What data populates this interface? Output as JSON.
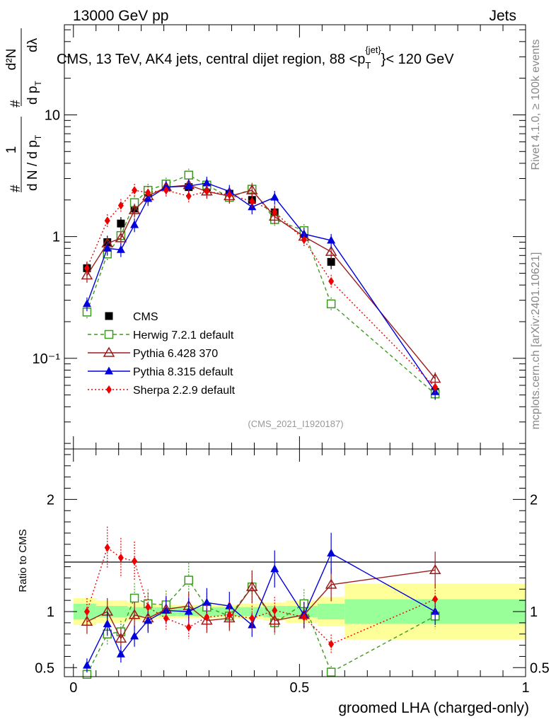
{
  "header": {
    "left": "13000 GeV pp",
    "right": "Jets"
  },
  "side_labels": {
    "rivet": "Rivet 4.1.0, ≥ 100k events",
    "mcplots": "mcplots.cern.ch [arXiv:2401.10621]"
  },
  "colors": {
    "cms": "#000000",
    "herwig": "#3c9a1e",
    "pythia6": "#9b1c1c",
    "pythia8": "#0000dd",
    "sherpa": "#ee0000",
    "band_inner": "#99ff99",
    "band_outer": "#ffff99"
  },
  "chart_data": [
    {
      "type": "scatter",
      "title": "CMS, 13 TeV, AK4 jets, central dijet region, 88 <p_T^{jet}< 120 GeV",
      "title_parts": {
        "prefix": "CMS, 13 TeV, AK4 jets, central dijet region, 88 <p",
        "sub": "T",
        "sup": "{jet}",
        "suffix": "}< 120 GeV"
      },
      "ylabel": "1/dN/dp_T d²N/dp_T dλ",
      "ylabel_parts": {
        "hash": "#",
        "one": "1",
        "denom": "d N / d p",
        "sub": "T",
        "num_a": "d²N",
        "num_b": "d p",
        "num_c": "dλ"
      },
      "yscale": "log",
      "ylim": [
        0.018,
        55
      ],
      "xlim": [
        -0.02,
        1.0
      ],
      "ytick_labels": [
        "10",
        "1",
        "10⁻¹"
      ],
      "ytick_values": [
        10,
        1,
        0.1
      ],
      "analysis_tag": "(CMS_2021_I1920187)",
      "legend_position": "lower-left",
      "series": [
        {
          "name": "CMS",
          "key": "cms",
          "x": [
            0.03,
            0.075,
            0.105,
            0.135,
            0.165,
            0.205,
            0.255,
            0.295,
            0.345,
            0.395,
            0.445,
            0.51,
            0.57,
            0.8
          ],
          "y": [
            0.55,
            0.9,
            1.28,
            1.7,
            2.3,
            2.55,
            2.55,
            2.55,
            2.25,
            2.0,
            1.58,
            1.05,
            0.62,
            0.053
          ]
        },
        {
          "name": "Herwig 7.2.1 default",
          "key": "herwig",
          "x": [
            0.03,
            0.075,
            0.105,
            0.135,
            0.165,
            0.205,
            0.255,
            0.295,
            0.345,
            0.395,
            0.445,
            0.51,
            0.57,
            0.8
          ],
          "y": [
            0.24,
            0.72,
            1.02,
            1.9,
            2.4,
            2.7,
            3.2,
            2.65,
            2.1,
            2.45,
            1.38,
            1.12,
            0.28,
            0.051
          ]
        },
        {
          "name": "Pythia 6.428 370",
          "key": "pythia6",
          "x": [
            0.03,
            0.075,
            0.105,
            0.135,
            0.165,
            0.205,
            0.255,
            0.295,
            0.345,
            0.395,
            0.445,
            0.51,
            0.57,
            0.8
          ],
          "y": [
            0.48,
            0.88,
            0.97,
            1.65,
            2.15,
            2.55,
            2.65,
            2.35,
            2.15,
            2.4,
            1.46,
            1.0,
            0.75,
            0.068
          ]
        },
        {
          "name": "Pythia 8.315 default",
          "key": "pythia8",
          "x": [
            0.03,
            0.075,
            0.105,
            0.135,
            0.165,
            0.205,
            0.255,
            0.295,
            0.345,
            0.395,
            0.445,
            0.51,
            0.57,
            0.8
          ],
          "y": [
            0.28,
            0.8,
            0.78,
            1.25,
            2.05,
            2.55,
            2.6,
            2.75,
            2.35,
            1.75,
            2.1,
            1.05,
            0.93,
            0.053
          ]
        },
        {
          "name": "Sherpa 2.2.9 default",
          "key": "sherpa",
          "x": [
            0.03,
            0.075,
            0.105,
            0.135,
            0.165,
            0.205,
            0.255,
            0.295,
            0.345,
            0.395,
            0.445,
            0.51,
            0.57,
            0.8
          ],
          "y": [
            0.55,
            1.35,
            1.8,
            2.4,
            2.3,
            2.4,
            2.15,
            2.35,
            2.2,
            1.95,
            1.6,
            0.94,
            0.43,
            0.058
          ]
        }
      ]
    },
    {
      "type": "scatter",
      "ylabel": "Ratio to CMS",
      "xlabel": "groomed LHA (charged-only)",
      "xlim": [
        -0.02,
        1.0
      ],
      "ylim": [
        0.42,
        2.45
      ],
      "xtick_labels": [
        "0",
        "0.5",
        "1"
      ],
      "xtick_values": [
        0,
        0.5,
        1
      ],
      "ytick_labels": [
        "0.5",
        "1",
        "2"
      ],
      "ytick_values": [
        0.5,
        1,
        2
      ],
      "band": {
        "edges": [
          0,
          0.05,
          0.09,
          0.12,
          0.15,
          0.18,
          0.23,
          0.28,
          0.31,
          0.37,
          0.42,
          0.47,
          0.54,
          0.6,
          1.0
        ],
        "inner": [
          0.07,
          0.05,
          0.05,
          0.04,
          0.04,
          0.04,
          0.04,
          0.04,
          0.04,
          0.04,
          0.05,
          0.05,
          0.07,
          0.11
        ],
        "outer": [
          0.12,
          0.1,
          0.1,
          0.08,
          0.07,
          0.06,
          0.06,
          0.06,
          0.06,
          0.07,
          0.08,
          0.1,
          0.13,
          0.25
        ]
      },
      "series": [
        {
          "name": "Herwig 7.2.1 default",
          "key": "herwig",
          "x": [
            0.03,
            0.075,
            0.105,
            0.135,
            0.165,
            0.205,
            0.255,
            0.295,
            0.345,
            0.395,
            0.445,
            0.51,
            0.57,
            0.8
          ],
          "y": [
            0.44,
            0.8,
            0.82,
            1.12,
            1.07,
            1.06,
            1.28,
            1.04,
            0.96,
            1.22,
            0.9,
            1.07,
            0.46,
            0.96
          ]
        },
        {
          "name": "Pythia 6.428 370",
          "key": "pythia6",
          "x": [
            0.03,
            0.075,
            0.105,
            0.135,
            0.165,
            0.205,
            0.255,
            0.295,
            0.345,
            0.395,
            0.445,
            0.51,
            0.57,
            0.8
          ],
          "y": [
            0.91,
            1.0,
            0.76,
            0.97,
            0.94,
            1.02,
            1.05,
            0.92,
            0.94,
            1.22,
            0.92,
            0.97,
            1.24,
            1.37
          ]
        },
        {
          "name": "Pythia 8.315 default",
          "key": "pythia8",
          "x": [
            0.03,
            0.075,
            0.105,
            0.135,
            0.165,
            0.205,
            0.255,
            0.295,
            0.345,
            0.395,
            0.445,
            0.51,
            0.57,
            0.8
          ],
          "y": [
            0.52,
            0.89,
            0.62,
            0.78,
            0.92,
            1.01,
            1.0,
            1.08,
            1.05,
            0.88,
            1.38,
            0.97,
            1.52,
            1.0
          ]
        },
        {
          "name": "Sherpa 2.2.9 default",
          "key": "sherpa",
          "x": [
            0.03,
            0.075,
            0.105,
            0.135,
            0.165,
            0.205,
            0.255,
            0.295,
            0.345,
            0.395,
            0.445,
            0.51,
            0.57,
            0.8
          ],
          "y": [
            1.0,
            1.57,
            1.48,
            1.45,
            1.04,
            0.94,
            0.86,
            0.95,
            0.97,
            0.94,
            1.01,
            0.95,
            0.71,
            1.11
          ]
        }
      ]
    }
  ]
}
